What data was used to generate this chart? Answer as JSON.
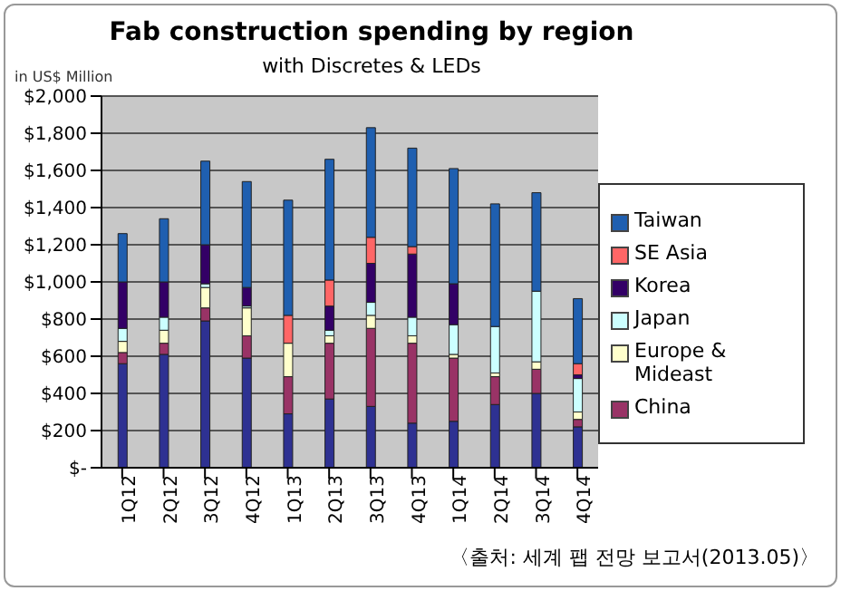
{
  "chart_data": {
    "type": "bar",
    "title": "Fab construction spending by region",
    "subtitle": "with Discretes & LEDs",
    "ylabel": "in US$ Million",
    "stacked": true,
    "grid": "y",
    "legend": "right",
    "categories": [
      "1Q12",
      "2Q12",
      "3Q12",
      "4Q12",
      "1Q13",
      "2Q13",
      "3Q13",
      "4Q13",
      "1Q14",
      "2Q14",
      "3Q14",
      "4Q14"
    ],
    "series": [
      {
        "color": "#2e3192",
        "values": [
          560,
          610,
          790,
          590,
          290,
          370,
          330,
          240,
          250,
          340,
          400,
          220
        ]
      },
      {
        "name": "China",
        "color": "#993366",
        "values": [
          60,
          60,
          70,
          120,
          200,
          300,
          420,
          430,
          340,
          150,
          130,
          40
        ]
      },
      {
        "name": "Europe & Mideast",
        "color": "#ffffcc",
        "values": [
          60,
          70,
          110,
          150,
          180,
          40,
          70,
          40,
          20,
          20,
          40,
          40
        ]
      },
      {
        "name": "Japan",
        "color": "#ccffff",
        "values": [
          70,
          70,
          20,
          10,
          0,
          30,
          70,
          100,
          160,
          250,
          380,
          180
        ]
      },
      {
        "name": "Korea",
        "color": "#330066",
        "values": [
          250,
          190,
          210,
          100,
          0,
          130,
          210,
          340,
          220,
          0,
          0,
          20
        ]
      },
      {
        "name": "SE Asia",
        "color": "#ff6666",
        "values": [
          0,
          0,
          0,
          0,
          150,
          140,
          140,
          40,
          0,
          0,
          0,
          60
        ]
      },
      {
        "name": "Taiwan",
        "color": "#1f5fb0",
        "values": [
          260,
          340,
          450,
          570,
          620,
          650,
          590,
          530,
          620,
          660,
          530,
          350
        ]
      }
    ],
    "ylim": [
      0,
      2000
    ],
    "yticks": [
      {
        "value": 0,
        "label": "$-"
      },
      {
        "value": 200,
        "label": "$200"
      },
      {
        "value": 400,
        "label": "$400"
      },
      {
        "value": 600,
        "label": "$600"
      },
      {
        "value": 800,
        "label": "$800"
      },
      {
        "value": 1000,
        "label": "$1,000"
      },
      {
        "value": 1200,
        "label": "$1,200"
      },
      {
        "value": 1400,
        "label": "$1,400"
      },
      {
        "value": 1600,
        "label": "$1,600"
      },
      {
        "value": 1800,
        "label": "$1,800"
      },
      {
        "value": 2000,
        "label": "$2,000"
      }
    ],
    "annotations": [
      "〈출처: 세계 팹 전망 보고서(2013.05)〉"
    ]
  }
}
